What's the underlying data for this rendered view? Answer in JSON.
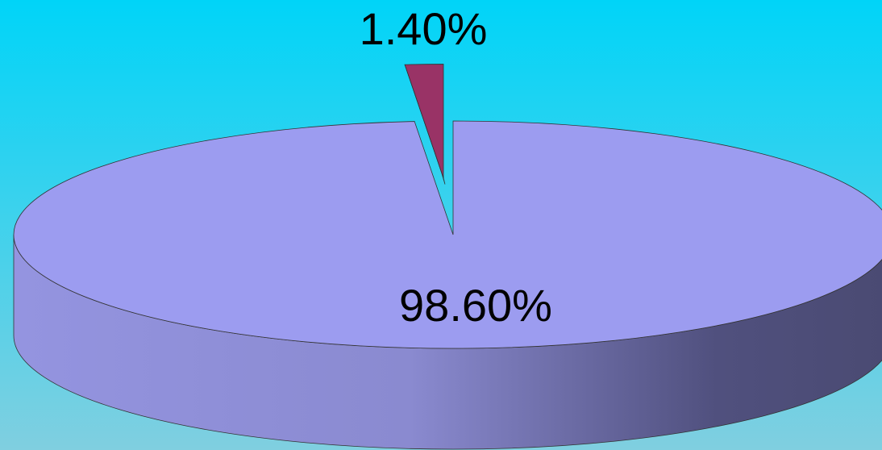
{
  "chart_data": {
    "type": "pie",
    "categories": [
      null,
      null
    ],
    "values": [
      98.6,
      1.4
    ],
    "value_labels": [
      "98.60%",
      "1.40%"
    ],
    "colors": [
      "#9c9cf0",
      "#993366"
    ]
  }
}
